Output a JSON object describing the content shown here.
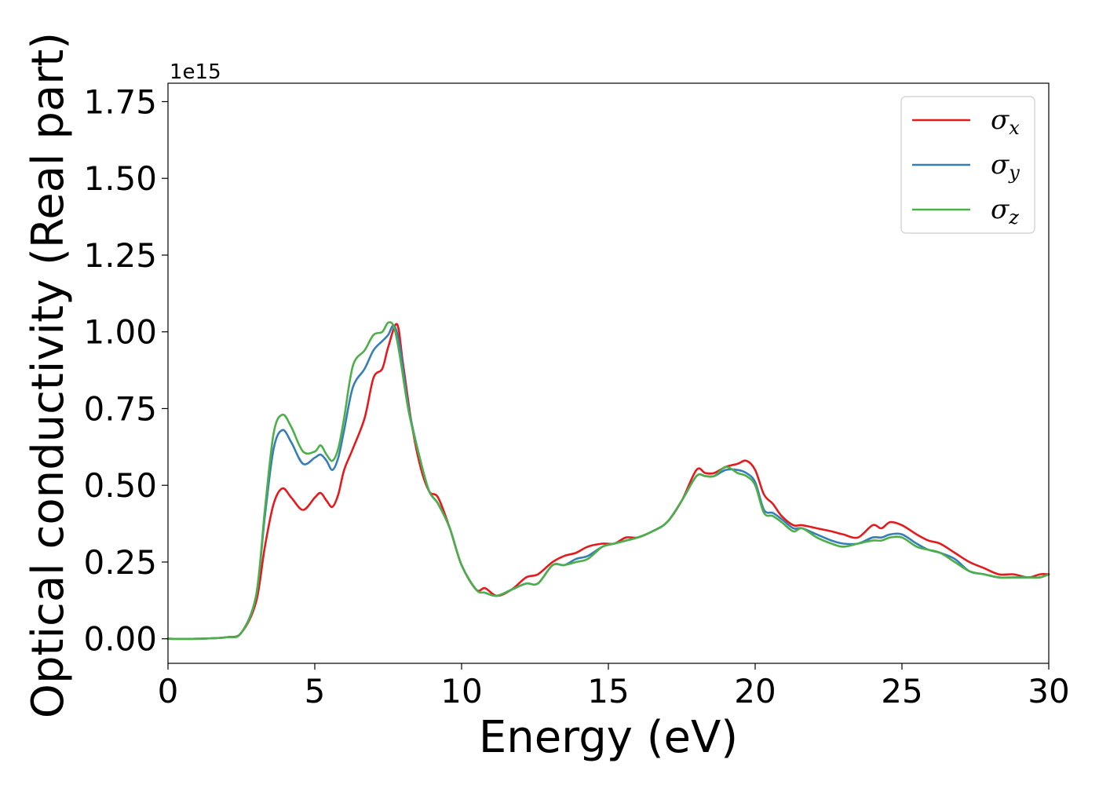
{
  "chart_data": {
    "type": "line",
    "title": "",
    "xlabel": "Energy (eV)",
    "ylabel": "Optical conductivity (Real part)",
    "y_offset_text": "1e15",
    "xlim": [
      0,
      30
    ],
    "ylim": [
      -0.08,
      1.81
    ],
    "x_ticks": [
      0,
      5,
      10,
      15,
      20,
      25,
      30
    ],
    "x_tick_labels": [
      "0",
      "5",
      "10",
      "15",
      "20",
      "25",
      "30"
    ],
    "y_ticks": [
      0.0,
      0.25,
      0.5,
      0.75,
      1.0,
      1.25,
      1.5,
      1.75
    ],
    "y_tick_labels": [
      "0.00",
      "0.25",
      "0.50",
      "0.75",
      "1.00",
      "1.25",
      "1.50",
      "1.75"
    ],
    "grid": false,
    "legend_position": "top-right",
    "series": [
      {
        "name": "σ_x",
        "symbol": "σ",
        "subscript": "x",
        "color": "#e41a1c",
        "points": [
          [
            0,
            0
          ],
          [
            1,
            0
          ],
          [
            2,
            0.005
          ],
          [
            2.5,
            0.02
          ],
          [
            3,
            0.12
          ],
          [
            3.3,
            0.3
          ],
          [
            3.6,
            0.44
          ],
          [
            3.9,
            0.49
          ],
          [
            4.2,
            0.46
          ],
          [
            4.6,
            0.42
          ],
          [
            5,
            0.46
          ],
          [
            5.2,
            0.475
          ],
          [
            5.4,
            0.45
          ],
          [
            5.6,
            0.43
          ],
          [
            5.8,
            0.47
          ],
          [
            6,
            0.55
          ],
          [
            6.3,
            0.62
          ],
          [
            6.7,
            0.72
          ],
          [
            7,
            0.85
          ],
          [
            7.3,
            0.88
          ],
          [
            7.5,
            0.95
          ],
          [
            7.8,
            1.025
          ],
          [
            8,
            0.9
          ],
          [
            8.3,
            0.7
          ],
          [
            8.6,
            0.56
          ],
          [
            8.9,
            0.48
          ],
          [
            9.2,
            0.46
          ],
          [
            9.6,
            0.36
          ],
          [
            10,
            0.24
          ],
          [
            10.5,
            0.16
          ],
          [
            10.8,
            0.165
          ],
          [
            11.2,
            0.14
          ],
          [
            11.7,
            0.16
          ],
          [
            12.2,
            0.2
          ],
          [
            12.6,
            0.21
          ],
          [
            13.1,
            0.25
          ],
          [
            13.5,
            0.27
          ],
          [
            13.9,
            0.28
          ],
          [
            14.3,
            0.3
          ],
          [
            14.8,
            0.31
          ],
          [
            15.2,
            0.31
          ],
          [
            15.6,
            0.33
          ],
          [
            16,
            0.33
          ],
          [
            16.5,
            0.35
          ],
          [
            17,
            0.38
          ],
          [
            17.5,
            0.45
          ],
          [
            18,
            0.55
          ],
          [
            18.3,
            0.54
          ],
          [
            18.6,
            0.54
          ],
          [
            19,
            0.56
          ],
          [
            19.4,
            0.57
          ],
          [
            19.7,
            0.58
          ],
          [
            20,
            0.55
          ],
          [
            20.3,
            0.47
          ],
          [
            20.6,
            0.44
          ],
          [
            20.9,
            0.4
          ],
          [
            21.3,
            0.37
          ],
          [
            21.6,
            0.37
          ],
          [
            22.1,
            0.36
          ],
          [
            22.6,
            0.35
          ],
          [
            23,
            0.34
          ],
          [
            23.5,
            0.33
          ],
          [
            24,
            0.37
          ],
          [
            24.3,
            0.36
          ],
          [
            24.6,
            0.38
          ],
          [
            25,
            0.37
          ],
          [
            25.5,
            0.34
          ],
          [
            25.9,
            0.32
          ],
          [
            26.3,
            0.31
          ],
          [
            26.8,
            0.28
          ],
          [
            27.3,
            0.25
          ],
          [
            27.8,
            0.23
          ],
          [
            28.3,
            0.21
          ],
          [
            28.8,
            0.21
          ],
          [
            29.3,
            0.2
          ],
          [
            29.7,
            0.21
          ],
          [
            30,
            0.21
          ]
        ]
      },
      {
        "name": "σ_y",
        "symbol": "σ",
        "subscript": "y",
        "color": "#377eb8",
        "points": [
          [
            0,
            0
          ],
          [
            1,
            0
          ],
          [
            2,
            0.005
          ],
          [
            2.5,
            0.02
          ],
          [
            3,
            0.14
          ],
          [
            3.3,
            0.4
          ],
          [
            3.6,
            0.62
          ],
          [
            3.9,
            0.68
          ],
          [
            4.2,
            0.64
          ],
          [
            4.6,
            0.57
          ],
          [
            5,
            0.59
          ],
          [
            5.2,
            0.6
          ],
          [
            5.4,
            0.58
          ],
          [
            5.6,
            0.55
          ],
          [
            5.8,
            0.59
          ],
          [
            6,
            0.68
          ],
          [
            6.3,
            0.82
          ],
          [
            6.7,
            0.88
          ],
          [
            7,
            0.94
          ],
          [
            7.3,
            0.97
          ],
          [
            7.5,
            0.99
          ],
          [
            7.7,
            1.02
          ],
          [
            7.9,
            0.95
          ],
          [
            8.2,
            0.75
          ],
          [
            8.6,
            0.58
          ],
          [
            8.9,
            0.48
          ],
          [
            9.2,
            0.44
          ],
          [
            9.6,
            0.36
          ],
          [
            10,
            0.24
          ],
          [
            10.5,
            0.16
          ],
          [
            10.8,
            0.15
          ],
          [
            11.2,
            0.14
          ],
          [
            11.7,
            0.16
          ],
          [
            12.2,
            0.18
          ],
          [
            12.6,
            0.18
          ],
          [
            13.1,
            0.24
          ],
          [
            13.5,
            0.24
          ],
          [
            13.9,
            0.26
          ],
          [
            14.3,
            0.27
          ],
          [
            14.8,
            0.3
          ],
          [
            15.2,
            0.31
          ],
          [
            15.6,
            0.32
          ],
          [
            16,
            0.33
          ],
          [
            16.5,
            0.35
          ],
          [
            17,
            0.38
          ],
          [
            17.5,
            0.45
          ],
          [
            18,
            0.53
          ],
          [
            18.3,
            0.53
          ],
          [
            18.6,
            0.53
          ],
          [
            19,
            0.55
          ],
          [
            19.4,
            0.55
          ],
          [
            19.7,
            0.54
          ],
          [
            20,
            0.51
          ],
          [
            20.3,
            0.42
          ],
          [
            20.6,
            0.41
          ],
          [
            20.9,
            0.39
          ],
          [
            21.3,
            0.36
          ],
          [
            21.6,
            0.36
          ],
          [
            22.1,
            0.34
          ],
          [
            22.6,
            0.32
          ],
          [
            23,
            0.31
          ],
          [
            23.5,
            0.31
          ],
          [
            24,
            0.33
          ],
          [
            24.3,
            0.33
          ],
          [
            24.6,
            0.34
          ],
          [
            25,
            0.34
          ],
          [
            25.5,
            0.31
          ],
          [
            25.9,
            0.29
          ],
          [
            26.3,
            0.28
          ],
          [
            26.8,
            0.26
          ],
          [
            27.3,
            0.22
          ],
          [
            27.8,
            0.21
          ],
          [
            28.3,
            0.2
          ],
          [
            28.8,
            0.2
          ],
          [
            29.3,
            0.2
          ],
          [
            29.7,
            0.2
          ],
          [
            30,
            0.21
          ]
        ]
      },
      {
        "name": "σ_z",
        "symbol": "σ",
        "subscript": "z",
        "color": "#4daf4a",
        "points": [
          [
            0,
            0
          ],
          [
            1,
            0
          ],
          [
            2,
            0.005
          ],
          [
            2.5,
            0.02
          ],
          [
            3,
            0.14
          ],
          [
            3.3,
            0.42
          ],
          [
            3.6,
            0.67
          ],
          [
            3.9,
            0.73
          ],
          [
            4.2,
            0.69
          ],
          [
            4.6,
            0.61
          ],
          [
            5,
            0.61
          ],
          [
            5.2,
            0.63
          ],
          [
            5.4,
            0.6
          ],
          [
            5.6,
            0.58
          ],
          [
            5.8,
            0.62
          ],
          [
            6,
            0.72
          ],
          [
            6.3,
            0.89
          ],
          [
            6.7,
            0.94
          ],
          [
            7,
            0.99
          ],
          [
            7.3,
            1.0
          ],
          [
            7.5,
            1.03
          ],
          [
            7.7,
            1.015
          ],
          [
            7.9,
            0.92
          ],
          [
            8.2,
            0.74
          ],
          [
            8.6,
            0.58
          ],
          [
            8.9,
            0.48
          ],
          [
            9.2,
            0.44
          ],
          [
            9.6,
            0.36
          ],
          [
            10,
            0.24
          ],
          [
            10.5,
            0.16
          ],
          [
            10.8,
            0.15
          ],
          [
            11.2,
            0.14
          ],
          [
            11.7,
            0.16
          ],
          [
            12.2,
            0.18
          ],
          [
            12.6,
            0.18
          ],
          [
            13.1,
            0.24
          ],
          [
            13.5,
            0.24
          ],
          [
            13.9,
            0.25
          ],
          [
            14.3,
            0.26
          ],
          [
            14.8,
            0.3
          ],
          [
            15.2,
            0.31
          ],
          [
            15.6,
            0.32
          ],
          [
            16,
            0.33
          ],
          [
            16.5,
            0.35
          ],
          [
            17,
            0.38
          ],
          [
            17.5,
            0.45
          ],
          [
            18,
            0.53
          ],
          [
            18.3,
            0.53
          ],
          [
            18.6,
            0.53
          ],
          [
            19,
            0.56
          ],
          [
            19.4,
            0.54
          ],
          [
            19.7,
            0.53
          ],
          [
            20,
            0.5
          ],
          [
            20.3,
            0.41
          ],
          [
            20.6,
            0.4
          ],
          [
            20.9,
            0.38
          ],
          [
            21.3,
            0.35
          ],
          [
            21.6,
            0.36
          ],
          [
            22.1,
            0.33
          ],
          [
            22.6,
            0.31
          ],
          [
            23,
            0.3
          ],
          [
            23.5,
            0.31
          ],
          [
            24,
            0.32
          ],
          [
            24.3,
            0.32
          ],
          [
            24.6,
            0.33
          ],
          [
            25,
            0.33
          ],
          [
            25.5,
            0.3
          ],
          [
            25.9,
            0.29
          ],
          [
            26.3,
            0.28
          ],
          [
            26.8,
            0.25
          ],
          [
            27.3,
            0.22
          ],
          [
            27.8,
            0.21
          ],
          [
            28.3,
            0.2
          ],
          [
            28.8,
            0.2
          ],
          [
            29.3,
            0.2
          ],
          [
            29.7,
            0.2
          ],
          [
            30,
            0.21
          ]
        ]
      }
    ]
  }
}
